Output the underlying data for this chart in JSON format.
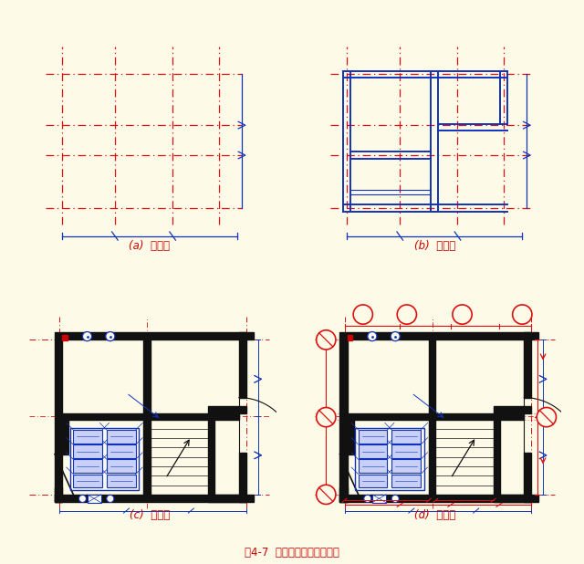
{
  "bg_color": "#FDFAE8",
  "title_text": "图4-7  建筑平面图的绘制步骤",
  "title_color": "#CC0000",
  "title_fontsize": 8.5,
  "labels": [
    "(a)  第一步",
    "(b)  第二步",
    "(c)  第三步",
    "(d)  第四步"
  ],
  "label_color": "#CC0000",
  "label_fontsize": 8.5,
  "RED": "#DD1111",
  "BLUE": "#1133BB",
  "BLACK": "#111111",
  "BLUE_LIGHT": "#C8D0F8"
}
